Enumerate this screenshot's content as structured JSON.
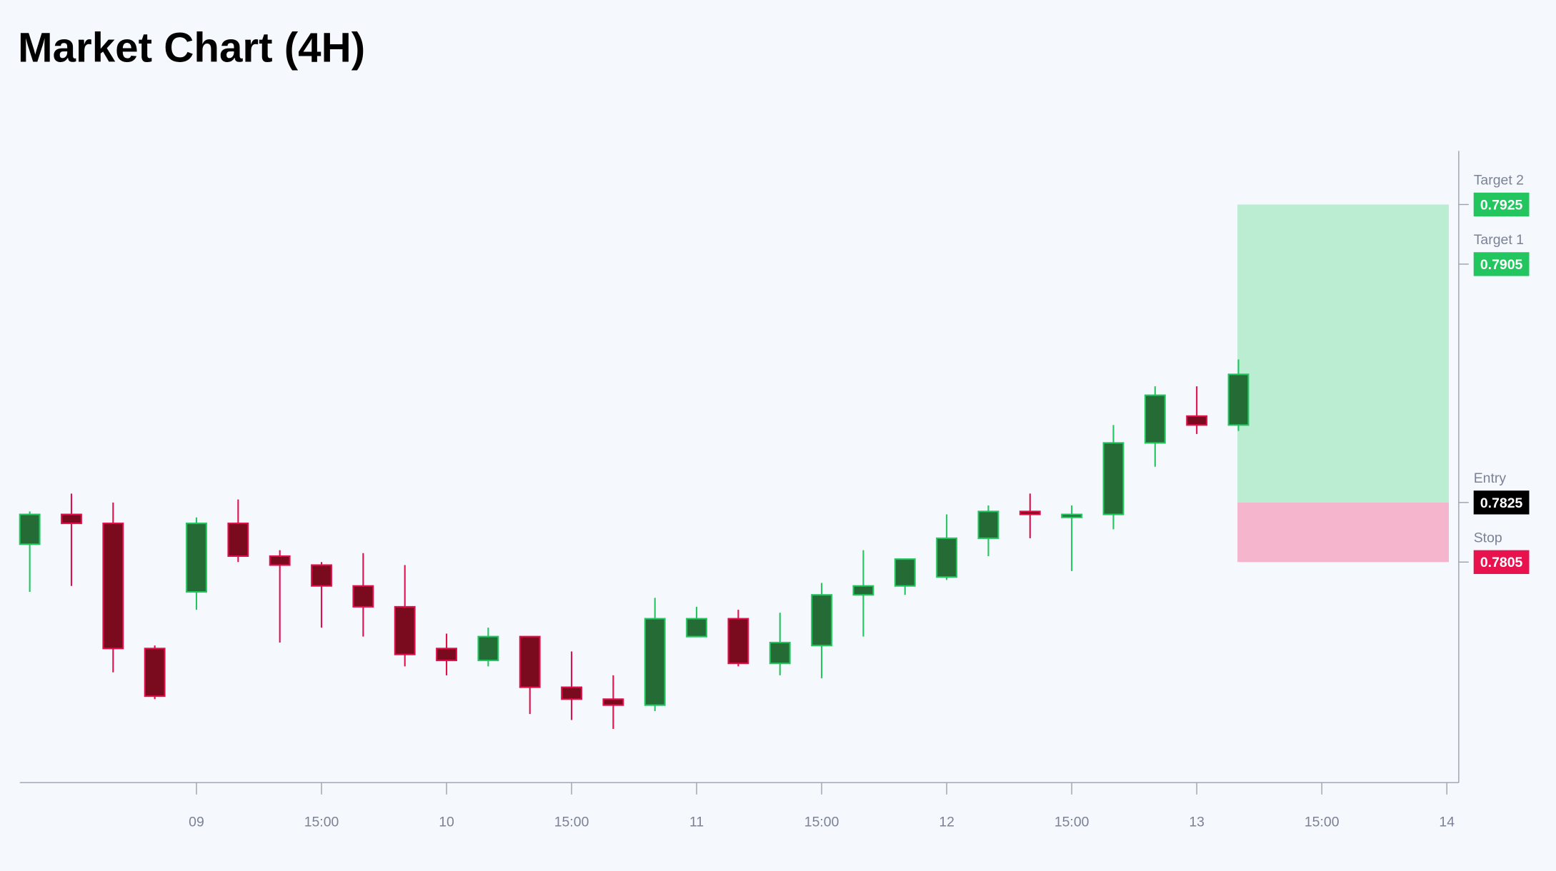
{
  "chart_data": {
    "type": "candlestick",
    "title": "Market Chart (4H)",
    "x": [
      0,
      4,
      8,
      12,
      16,
      20,
      24,
      28,
      32,
      36,
      40,
      44,
      48,
      52,
      56,
      60,
      64,
      68,
      72,
      76,
      80,
      84,
      88,
      92,
      96,
      100,
      104,
      108,
      112,
      116
    ],
    "open": [
      0.7811,
      0.7821,
      0.7818,
      0.7776,
      0.7795,
      0.7818,
      0.7807,
      0.7804,
      0.7797,
      0.779,
      0.7776,
      0.7772,
      0.778,
      0.7763,
      0.7759,
      0.7757,
      0.778,
      0.7786,
      0.7771,
      0.7777,
      0.7794,
      0.7797,
      0.78,
      0.7813,
      0.7822,
      0.782,
      0.7821,
      0.7845,
      0.7854,
      0.7851
    ],
    "high": [
      0.7822,
      0.7828,
      0.7825,
      0.7777,
      0.782,
      0.7826,
      0.7809,
      0.7805,
      0.7808,
      0.7804,
      0.7781,
      0.7783,
      0.778,
      0.7775,
      0.7767,
      0.7793,
      0.779,
      0.7789,
      0.7788,
      0.7798,
      0.7809,
      0.7806,
      0.7821,
      0.7824,
      0.7828,
      0.7824,
      0.7851,
      0.7864,
      0.7864,
      0.7873
    ],
    "low": [
      0.7795,
      0.7797,
      0.7768,
      0.7759,
      0.7789,
      0.7805,
      0.7778,
      0.7783,
      0.778,
      0.777,
      0.7767,
      0.777,
      0.7754,
      0.7752,
      0.7749,
      0.7755,
      0.778,
      0.777,
      0.7767,
      0.7766,
      0.778,
      0.7794,
      0.7799,
      0.7807,
      0.7813,
      0.7802,
      0.7816,
      0.7837,
      0.7848,
      0.7849
    ],
    "close": [
      0.7821,
      0.7818,
      0.7776,
      0.776,
      0.7818,
      0.7807,
      0.7804,
      0.7797,
      0.779,
      0.7774,
      0.7772,
      0.778,
      0.7763,
      0.7759,
      0.7757,
      0.7786,
      0.7786,
      0.7771,
      0.7778,
      0.7794,
      0.7797,
      0.7806,
      0.7813,
      0.7822,
      0.7821,
      0.7821,
      0.7845,
      0.7861,
      0.7851,
      0.7868
    ],
    "up_color": "#22c55e",
    "up_fill": "#256b35",
    "down_color": "#e0104a",
    "down_fill": "#7a0a1e",
    "xlim": [
      -0.95,
      136.19
    ],
    "xticks": [
      {
        "value": 16,
        "label": "09"
      },
      {
        "value": 28,
        "label": "15:00"
      },
      {
        "value": 40,
        "label": "10"
      },
      {
        "value": 52,
        "label": "15:00"
      },
      {
        "value": 64,
        "label": "11"
      },
      {
        "value": 76,
        "label": "15:00"
      },
      {
        "value": 88,
        "label": "12"
      },
      {
        "value": 100,
        "label": "15:00"
      },
      {
        "value": 112,
        "label": "13"
      },
      {
        "value": 124,
        "label": "15:00"
      },
      {
        "value": 136,
        "label": "14"
      }
    ],
    "ylim": [
      0.7731,
      0.7943
    ],
    "levels": [
      {
        "name": "Target 2",
        "value": 0.7925,
        "color": "#22c55e"
      },
      {
        "name": "Target 1",
        "value": 0.7905,
        "color": "#22c55e"
      },
      {
        "name": "Entry",
        "value": 0.7825,
        "color": "#000000"
      },
      {
        "name": "Stop",
        "value": 0.7805,
        "color": "#e8124f"
      }
    ],
    "profit_zone_color": "#bbedd3",
    "loss_zone_color": "#f5b5cc"
  }
}
